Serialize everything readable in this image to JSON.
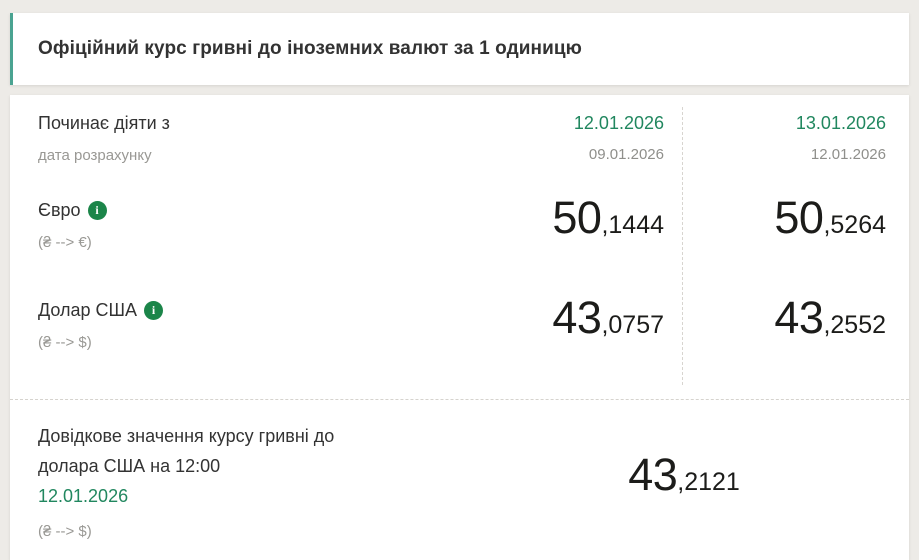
{
  "header": {
    "title": "Офіційний курс гривні до іноземних валют за 1 одиницю"
  },
  "icons": {
    "info_glyph": "i"
  },
  "colors": {
    "accent_green_text": "#21875f",
    "info_icon_green": "#1b8549",
    "header_border_teal": "#4aa391",
    "page_background": "#edebe7",
    "value_text": "#1c1c1a"
  },
  "rates_table": {
    "effective_label": "Починає діяти з",
    "effective_sublabel": "дата розрахунку",
    "columns": [
      {
        "effective_date": "12.01.2026",
        "calculation_date": "09.01.2026"
      },
      {
        "effective_date": "13.01.2026",
        "calculation_date": "12.01.2026"
      }
    ],
    "rows": [
      {
        "currency": "Євро",
        "code": "(₴ --> €)",
        "values": [
          {
            "int": "50",
            "frac": ",1444"
          },
          {
            "int": "50",
            "frac": ",5264"
          }
        ]
      },
      {
        "currency": "Долар США",
        "code": "(₴ --> $)",
        "values": [
          {
            "int": "43",
            "frac": ",0757"
          },
          {
            "int": "43",
            "frac": ",2552"
          }
        ]
      }
    ]
  },
  "reference_section": {
    "text": "Довідкове значення курсу гривні до долара США на 12:00",
    "date": "12.01.2026",
    "code": "(₴ --> $)",
    "value_int": "43",
    "value_frac": ",2121"
  }
}
